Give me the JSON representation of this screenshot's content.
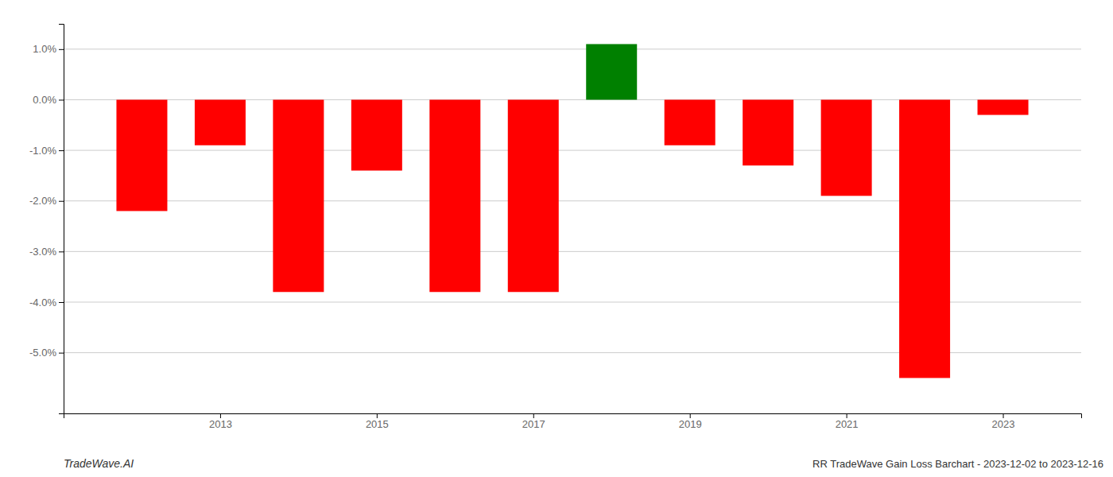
{
  "chart_data": {
    "type": "bar",
    "x": [
      2012,
      2013,
      2014,
      2015,
      2016,
      2017,
      2018,
      2019,
      2020,
      2021,
      2022,
      2023
    ],
    "values": [
      -0.022,
      -0.009,
      -0.038,
      -0.014,
      -0.038,
      -0.038,
      0.011,
      -0.009,
      -0.013,
      -0.019,
      -0.055,
      -0.003
    ],
    "colors": [
      "#ff0000",
      "#ff0000",
      "#ff0000",
      "#ff0000",
      "#ff0000",
      "#ff0000",
      "#008000",
      "#ff0000",
      "#ff0000",
      "#ff0000",
      "#ff0000",
      "#ff0000"
    ],
    "xlim": [
      2011,
      2024
    ],
    "xticks": [
      2013,
      2015,
      2017,
      2019,
      2021,
      2023
    ],
    "ylim": [
      -0.062,
      0.015
    ],
    "yticks": [
      {
        "value": -0.05,
        "label": "-5.0%"
      },
      {
        "value": -0.04,
        "label": "-4.0%"
      },
      {
        "value": -0.03,
        "label": "-3.0%"
      },
      {
        "value": -0.02,
        "label": "-2.0%"
      },
      {
        "value": -0.01,
        "label": "-1.0%"
      },
      {
        "value": 0.0,
        "label": "0.0%"
      },
      {
        "value": 0.01,
        "label": "1.0%"
      }
    ],
    "grid": true,
    "annotations": [
      "TradeWave.AI",
      "RR TradeWave Gain Loss Barchart - 2023-12-02 to 2023-12-16"
    ]
  }
}
